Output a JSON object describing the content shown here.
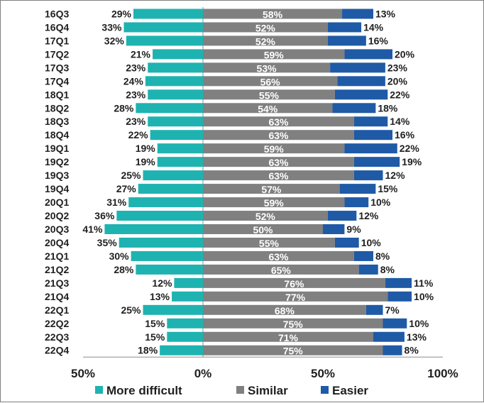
{
  "chart_data": {
    "type": "bar",
    "orientation": "horizontal",
    "stacked": "diverging",
    "categories": [
      "16Q3",
      "16Q4",
      "17Q1",
      "17Q2",
      "17Q3",
      "17Q4",
      "18Q1",
      "18Q2",
      "18Q3",
      "18Q4",
      "19Q1",
      "19Q2",
      "19Q3",
      "19Q4",
      "20Q1",
      "20Q2",
      "20Q3",
      "20Q4",
      "21Q1",
      "21Q2",
      "21Q3",
      "21Q4",
      "22Q1",
      "22Q2",
      "22Q3",
      "22Q4"
    ],
    "series": [
      {
        "name": "More difficult",
        "color": "#1eb3b0",
        "direction": "negative",
        "values": [
          29,
          33,
          32,
          21,
          23,
          24,
          23,
          28,
          23,
          22,
          19,
          19,
          25,
          27,
          31,
          36,
          41,
          35,
          30,
          28,
          12,
          13,
          25,
          15,
          15,
          18
        ]
      },
      {
        "name": "Similar",
        "color": "#808080",
        "direction": "positive",
        "values": [
          58,
          52,
          52,
          59,
          53,
          56,
          55,
          54,
          63,
          63,
          59,
          63,
          63,
          57,
          59,
          52,
          50,
          55,
          63,
          65,
          76,
          77,
          68,
          75,
          71,
          75
        ]
      },
      {
        "name": "Easier",
        "color": "#1f5aa6",
        "direction": "positive",
        "values": [
          13,
          14,
          16,
          20,
          23,
          20,
          22,
          18,
          14,
          16,
          22,
          19,
          12,
          15,
          10,
          12,
          9,
          10,
          8,
          8,
          11,
          10,
          7,
          10,
          13,
          8
        ]
      }
    ],
    "x_axis": {
      "range": [
        -50,
        100
      ],
      "ticks": [
        -50,
        0,
        50,
        100
      ],
      "tick_labels": [
        "50%",
        "0%",
        "50%",
        "100%"
      ]
    },
    "value_suffix": "%",
    "legend": {
      "position": "bottom",
      "entries": [
        "More difficult",
        "Similar",
        "Easier"
      ]
    },
    "title": "",
    "xlabel": "",
    "ylabel": ""
  }
}
